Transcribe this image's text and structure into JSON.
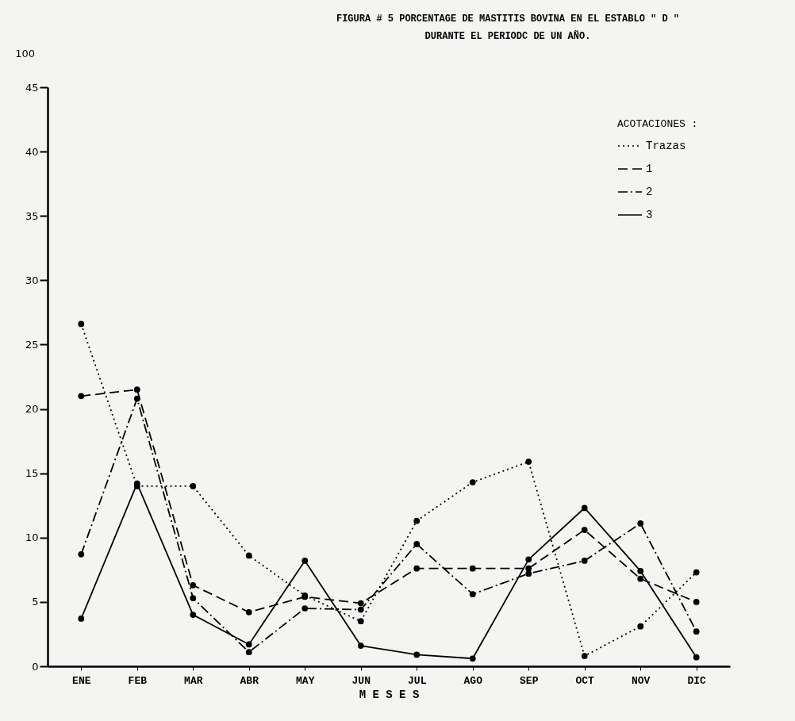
{
  "chart_data": {
    "type": "line",
    "title": "FIGURA # 5 PORCENTAGE DE MASTITIS BOVINA EN EL ESTABLO \" D \"",
    "subtitle": "DURANTE EL PERIODC DE UN AÑO.",
    "xlabel": "M E S E S",
    "legend_title": "ACOTACIONES :",
    "annotations": [
      "100"
    ],
    "categories": [
      "ENE",
      "FEB",
      "MAR",
      "ABR",
      "MAY",
      "JUN",
      "JUL",
      "AGO",
      "SEP",
      "OCT",
      "NOV",
      "DIC"
    ],
    "series": [
      {
        "name": "Trazas",
        "color": "#000000",
        "line_style": "dotted",
        "values": [
          26.6,
          14.0,
          14.0,
          8.6,
          5.5,
          3.5,
          11.3,
          14.3,
          15.9,
          0.8,
          3.1,
          7.3
        ]
      },
      {
        "name": "1",
        "color": "#000000",
        "line_style": "dashed",
        "values": [
          21.0,
          21.5,
          6.3,
          4.2,
          5.4,
          4.9,
          7.6,
          7.6,
          7.6,
          10.6,
          6.8,
          5.0
        ]
      },
      {
        "name": "2",
        "color": "#000000",
        "line_style": "dashdot",
        "values": [
          8.7,
          20.8,
          5.3,
          1.1,
          4.5,
          4.4,
          9.5,
          5.6,
          7.2,
          8.2,
          11.1,
          2.7
        ]
      },
      {
        "name": "3",
        "color": "#000000",
        "line_style": "solid",
        "values": [
          3.7,
          14.2,
          4.0,
          1.7,
          8.2,
          1.6,
          0.9,
          0.6,
          8.3,
          12.3,
          7.4,
          0.7
        ]
      }
    ],
    "ylim": [
      0,
      45
    ],
    "yticks": [
      0,
      5,
      10,
      15,
      20,
      25,
      30,
      35,
      40,
      45
    ],
    "grid": false,
    "legend": "top right",
    "marker": "circle"
  }
}
